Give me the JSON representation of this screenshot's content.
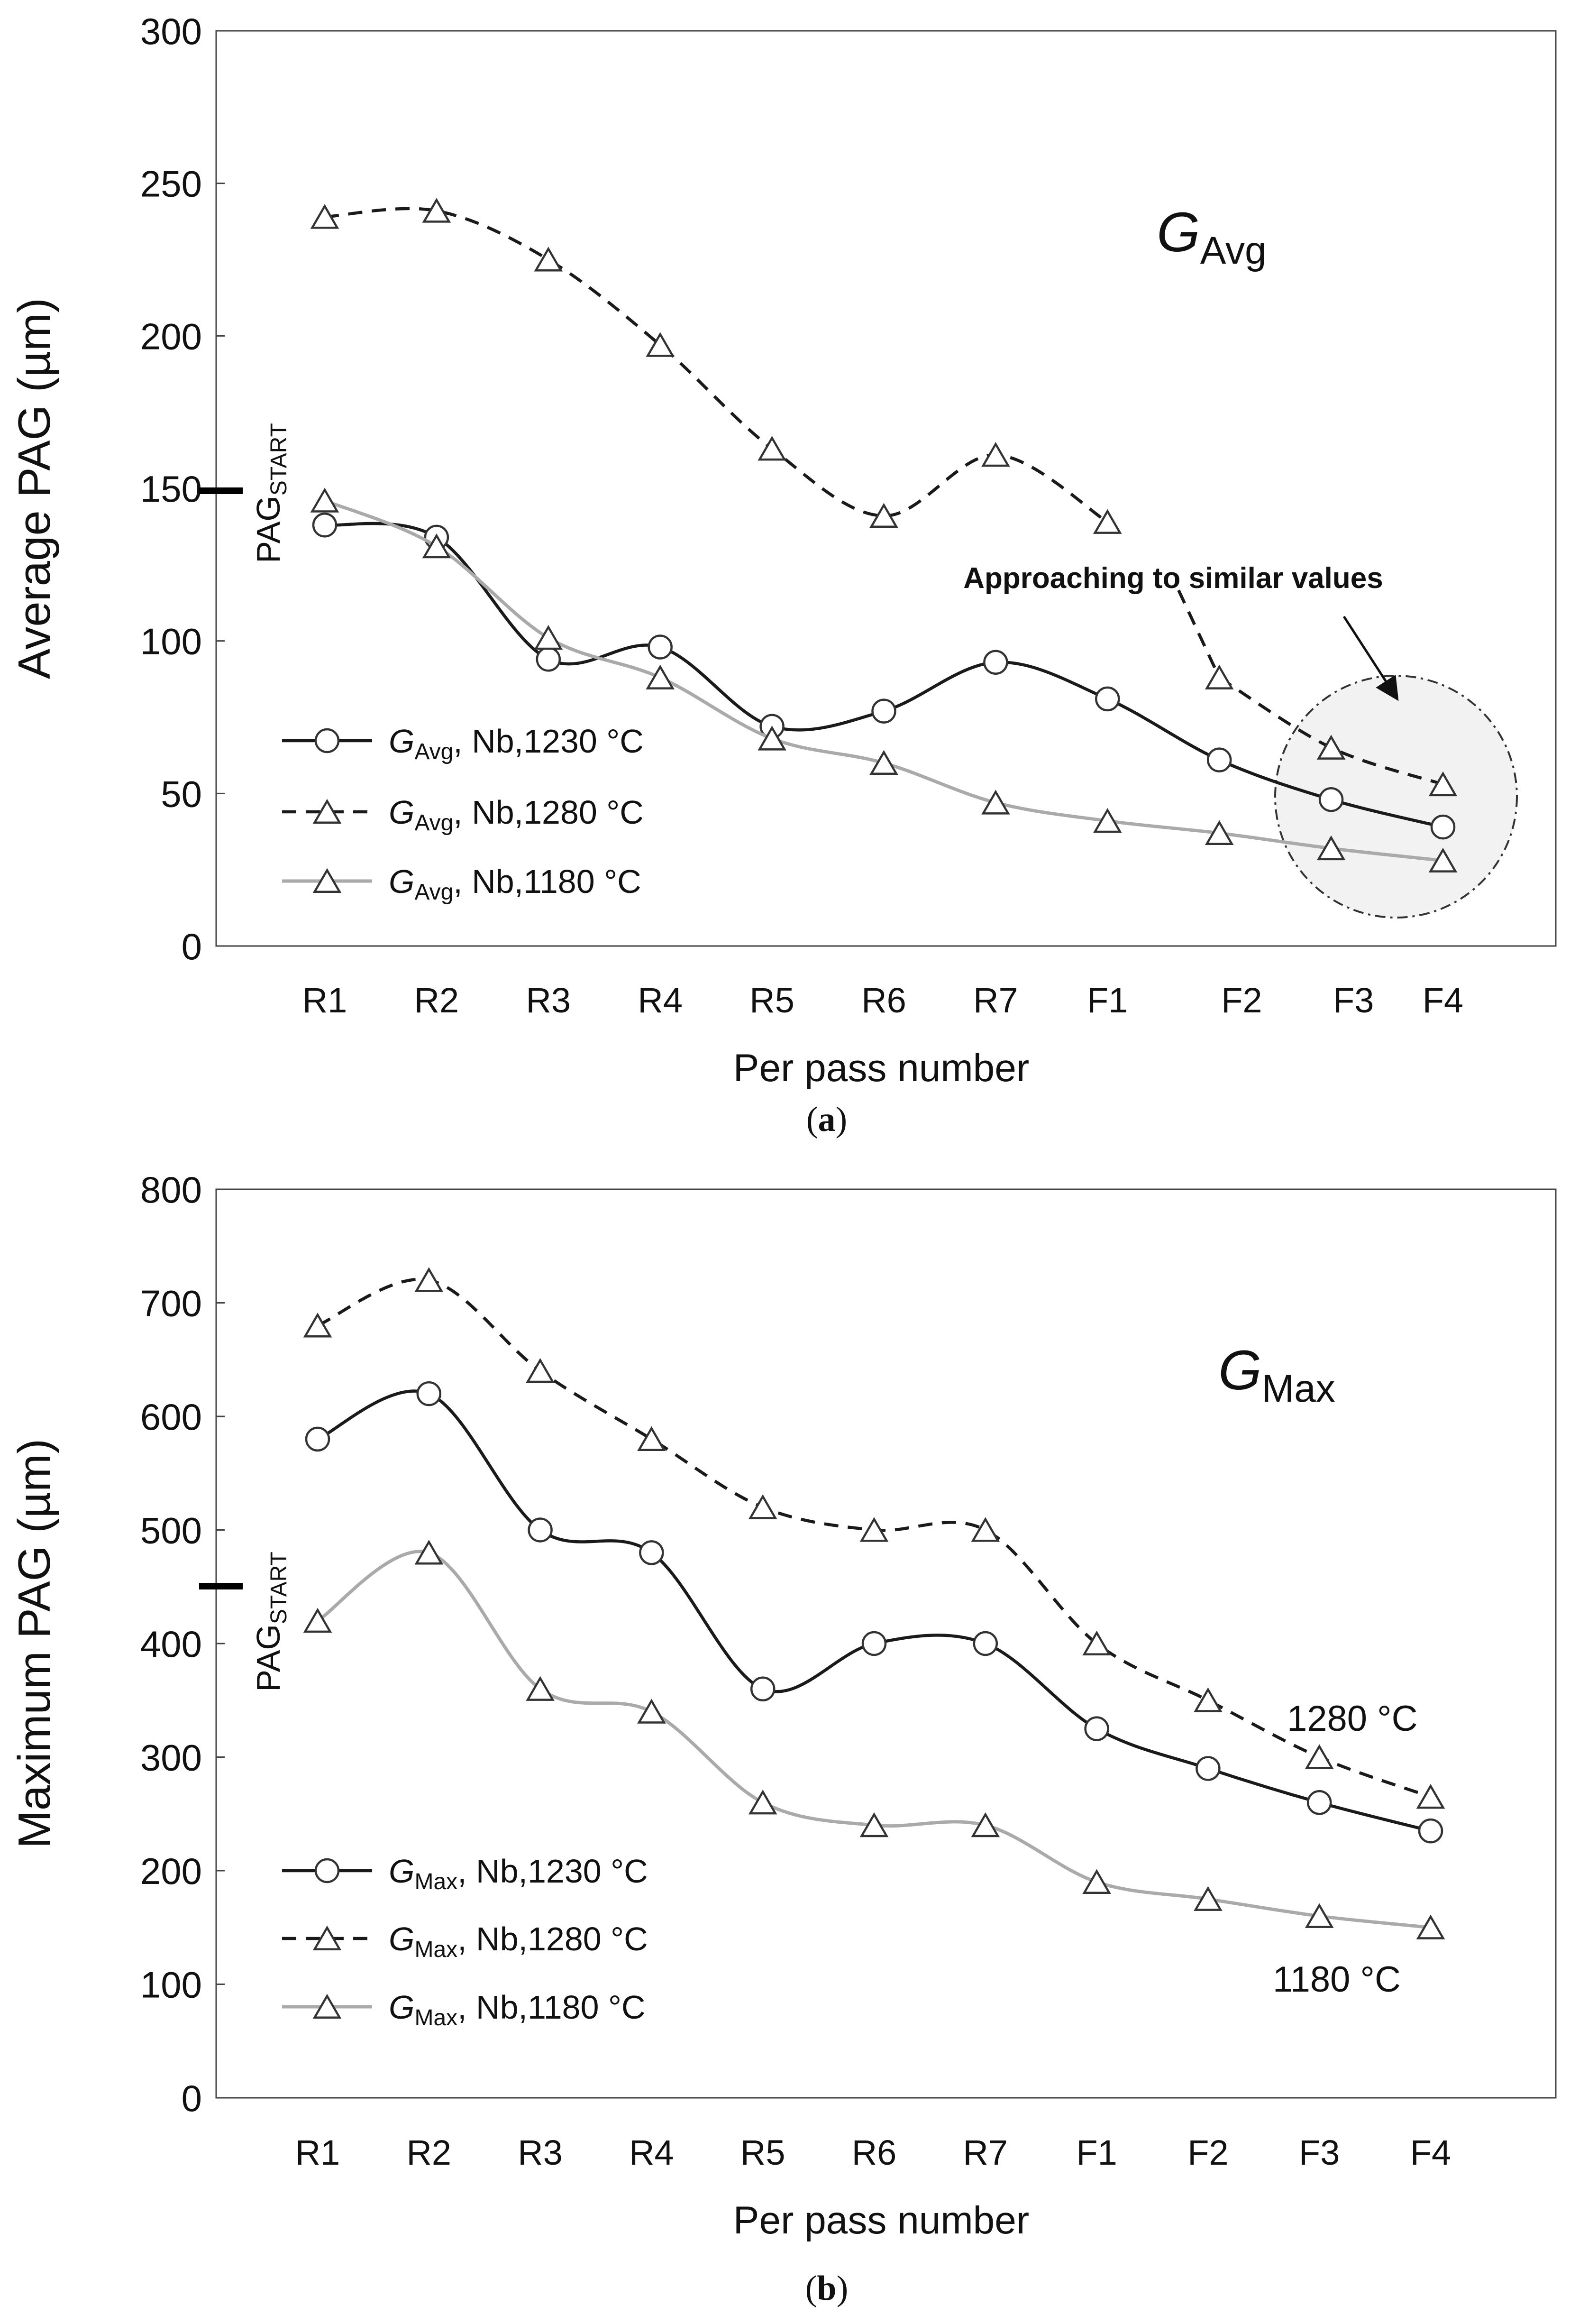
{
  "chart_data": [
    {
      "type": "line",
      "panel_label": "(a)",
      "panel_letter": "a",
      "xlabel": "Per pass number",
      "ylabel": "Average PAG (µm)",
      "ylim": [
        0,
        300
      ],
      "yticks": [
        0,
        50,
        100,
        150,
        200,
        250,
        300
      ],
      "grid": false,
      "categories": [
        "R1",
        "R2",
        "R3",
        "R4",
        "R5",
        "R6",
        "R7",
        "F1",
        "F2",
        "F3",
        "F4"
      ],
      "category_positions": [
        0,
        1,
        2,
        3,
        4,
        5,
        6,
        7,
        8.2,
        9.2,
        10
      ],
      "corner_label": {
        "main": "G",
        "sub": "Avg"
      },
      "reference": {
        "label_main": "PAG",
        "label_sub": "START",
        "value": 150
      },
      "annotation": {
        "text": "Approaching to similar values",
        "highlight_region": "F3–F4"
      },
      "legend_position": "bottom-left",
      "series": [
        {
          "name_main": "G",
          "name_sub": "Avg",
          "name_suffix": ", Nb,1230 °C",
          "marker": "circle",
          "style": "solid",
          "color": "#1a1a1a",
          "x": [
            0,
            1,
            2,
            3,
            4,
            5,
            6,
            7,
            8.0,
            9.0,
            10
          ],
          "values": [
            138,
            134,
            94,
            98,
            72,
            77,
            93,
            81,
            61,
            48,
            39
          ]
        },
        {
          "name_main": "G",
          "name_sub": "Avg",
          "name_suffix": ", Nb,1280 °C",
          "marker": "triangle",
          "style": "dashed",
          "color": "#1a1a1a",
          "x": [
            0,
            1,
            2,
            3,
            4,
            5,
            6,
            7,
            8.0,
            9.0,
            10
          ],
          "values": [
            239,
            241,
            225,
            197,
            163,
            141,
            161,
            139,
            88,
            65,
            53
          ]
        },
        {
          "name_main": "G",
          "name_sub": "Avg",
          "name_suffix": ", Nb,1180 °C",
          "marker": "triangle",
          "style": "solid",
          "color": "#aaaaaa",
          "x": [
            0,
            1,
            2,
            3,
            4,
            5,
            6,
            7,
            8.0,
            9.0,
            10
          ],
          "values": [
            146,
            131,
            101,
            88,
            68,
            60,
            47,
            41,
            37,
            32,
            28
          ]
        }
      ]
    },
    {
      "type": "line",
      "panel_label": "(b)",
      "panel_letter": "b",
      "xlabel": "Per pass number",
      "ylabel": "Maximum PAG (µm)",
      "ylim": [
        0,
        800
      ],
      "yticks": [
        0,
        100,
        200,
        300,
        400,
        500,
        600,
        700,
        800
      ],
      "grid": false,
      "categories": [
        "R1",
        "R2",
        "R3",
        "R4",
        "R5",
        "R6",
        "R7",
        "F1",
        "F2",
        "F3",
        "F4"
      ],
      "category_positions": [
        0,
        1,
        2,
        3,
        4,
        5,
        6,
        7,
        8,
        9,
        10
      ],
      "corner_label": {
        "main": "G",
        "sub": "Max"
      },
      "reference": {
        "label_main": "PAG",
        "label_sub": "START",
        "value": 450
      },
      "annotations": [
        {
          "text": "1280 °C",
          "series": 1
        },
        {
          "text": "1180 °C",
          "series": 2
        }
      ],
      "legend_position": "bottom-left",
      "series": [
        {
          "name_main": "G",
          "name_sub": "Max",
          "name_suffix": ", Nb,1230 °C",
          "marker": "circle",
          "style": "solid",
          "color": "#1a1a1a",
          "x": [
            0,
            1,
            2,
            3,
            4,
            5,
            6,
            7,
            8,
            9,
            10
          ],
          "values": [
            580,
            620,
            500,
            480,
            360,
            400,
            400,
            325,
            290,
            260,
            235
          ]
        },
        {
          "name_main": "G",
          "name_sub": "Max",
          "name_suffix": ", Nb,1280 °C",
          "marker": "triangle",
          "style": "dashed",
          "color": "#1a1a1a",
          "x": [
            0,
            1,
            2,
            3,
            4,
            5,
            6,
            7,
            8,
            9,
            10
          ],
          "values": [
            680,
            720,
            640,
            580,
            520,
            500,
            500,
            400,
            350,
            300,
            265
          ]
        },
        {
          "name_main": "G",
          "name_sub": "Max",
          "name_suffix": ", Nb,1180 °C",
          "marker": "triangle",
          "style": "solid",
          "color": "#aaaaaa",
          "x": [
            0,
            1,
            2,
            3,
            4,
            5,
            6,
            7,
            8,
            9,
            10
          ],
          "values": [
            420,
            480,
            360,
            340,
            260,
            240,
            240,
            190,
            175,
            160,
            150
          ]
        }
      ]
    }
  ]
}
